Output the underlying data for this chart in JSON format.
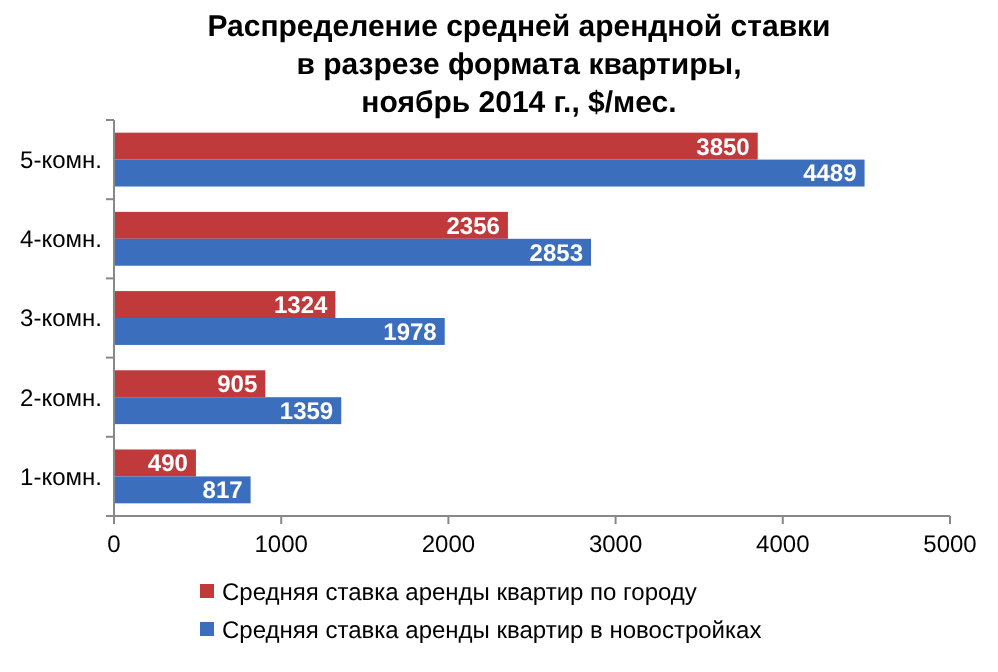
{
  "chart_data": {
    "type": "bar",
    "orientation": "horizontal",
    "title": "Распределение средней арендной ставки\nв разрезе формата квартиры,\nноябрь 2014 г., $/мес.",
    "categories": [
      "5-комн.",
      "4-комн.",
      "3-комн.",
      "2-комн.",
      "1-комн."
    ],
    "series": [
      {
        "name": "Средняя ставка аренды квартир по городу",
        "color": "#c0393b",
        "values": [
          3850,
          2356,
          1324,
          905,
          490
        ]
      },
      {
        "name": "Средняя ставка аренды квартир в новостройках",
        "color": "#3b6fbd",
        "values": [
          4489,
          2853,
          1978,
          1359,
          817
        ]
      }
    ],
    "xlim": [
      0,
      5000
    ],
    "xticks": [
      0,
      1000,
      2000,
      3000,
      4000,
      5000
    ],
    "data_labels": true,
    "grid": false,
    "legend": "bottom"
  }
}
